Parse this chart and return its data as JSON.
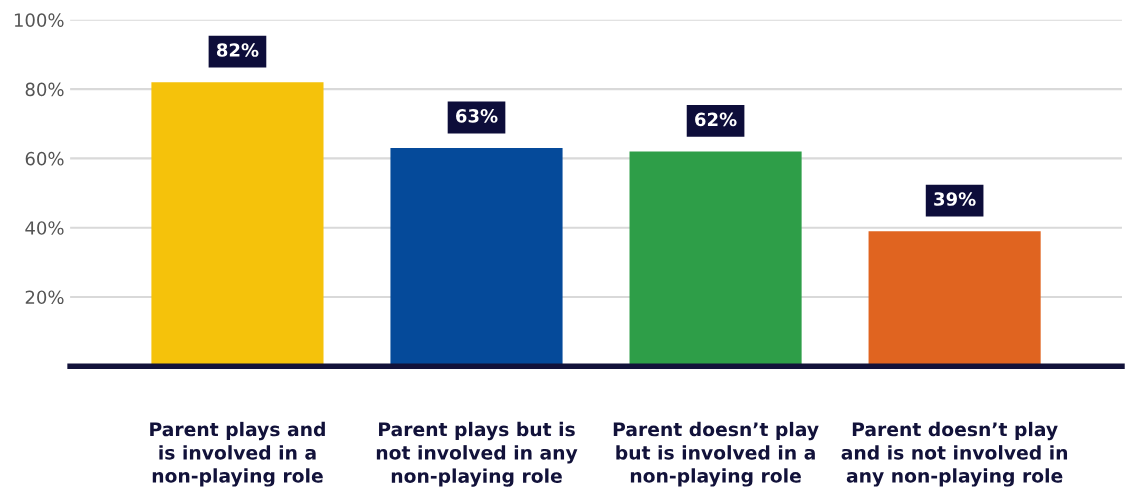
{
  "chart_data": {
    "type": "bar",
    "categories": [
      "Parent plays and\nis involved in a\nnon-playing role",
      "Parent plays but is\nnot involved in any\nnon-playing role",
      "Parent doesn’t play\nbut is involved in a\nnon-playing role",
      "Parent doesn’t play\nand is not involved in\nany non-playing role"
    ],
    "values": [
      82,
      63,
      62,
      39
    ],
    "colors": [
      "#f5c20b",
      "#054a9a",
      "#2e9e48",
      "#e06420"
    ],
    "value_labels": [
      "82%",
      "63%",
      "62%",
      "39%"
    ],
    "ylim": [
      0,
      100
    ],
    "yticks": [
      {
        "value": 20,
        "label": "20%"
      },
      {
        "value": 40,
        "label": "40%"
      },
      {
        "value": 60,
        "label": "60%"
      },
      {
        "value": 80,
        "label": "80%"
      },
      {
        "value": 100,
        "label": "100%"
      }
    ],
    "grid": "y"
  }
}
